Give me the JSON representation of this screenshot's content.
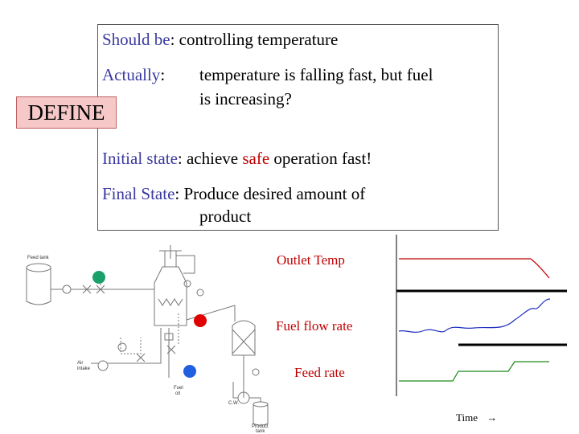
{
  "define_box": {
    "should_be_label": "Should be",
    "should_be_text": ": controlling temperature",
    "actually_label": "Actually",
    "actually_colon": ":",
    "actually_line1": "temperature is falling fast, but fuel",
    "actually_line2": "is increasing?",
    "initial_label": "Initial state",
    "initial_text_pre": ": achieve ",
    "initial_safe": "safe",
    "initial_text_post": " operation fast!",
    "final_label": "Final State",
    "final_line1": ": Produce desired amount of",
    "final_line2": "product"
  },
  "define_tag": "DEFINE",
  "process": {
    "feed_tank": "Feed tank",
    "air_intake_1": "Air",
    "air_intake_2": "intake",
    "fuel_oil_1": "Fuel",
    "fuel_oil_2": "oil",
    "cw": "C.W.",
    "product_tank_1": "Product",
    "product_tank_2": "tank"
  },
  "trends": {
    "outlet_temp": "Outlet Temp",
    "fuel_flow": "Fuel flow rate",
    "feed_rate": "Feed rate",
    "time_label": "Time",
    "time_arrow": "→"
  },
  "colors": {
    "label_blue": "#3a3aa0",
    "alert_red": "#c00000",
    "outlet_line": "#c00000",
    "fuel_line": "#1f2fbf",
    "feed_line": "#1a8a1a",
    "indicator_green": "#1aa06a",
    "indicator_red": "#e00000",
    "indicator_blue": "#1f5fe0"
  }
}
